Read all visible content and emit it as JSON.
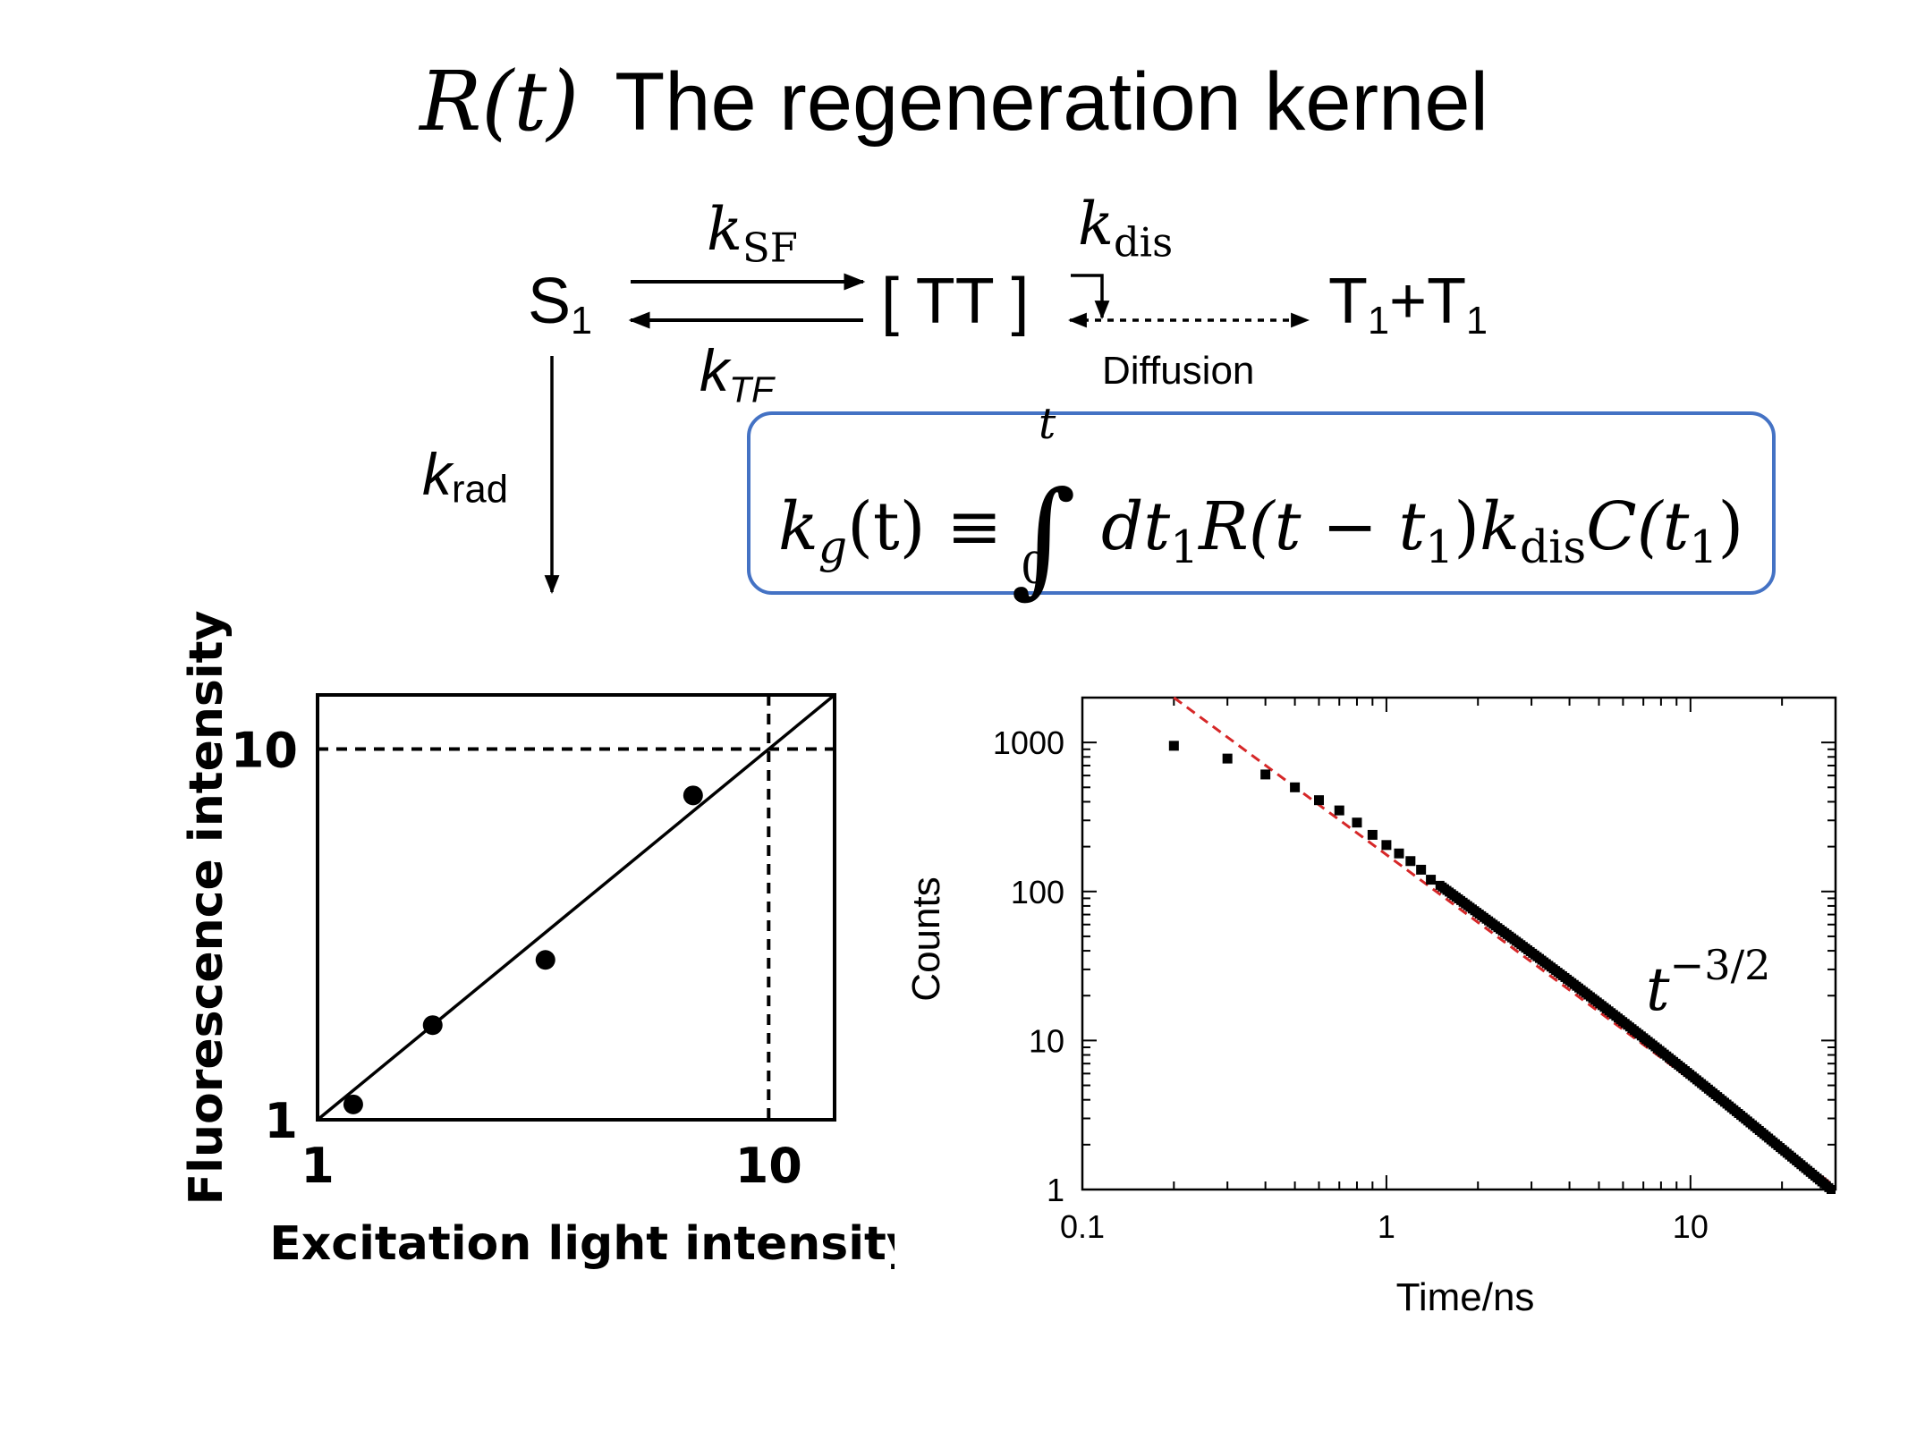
{
  "title": {
    "math": "R(t)",
    "text": "The regeneration kernel"
  },
  "scheme": {
    "s1": {
      "main": "S",
      "sub": "1"
    },
    "tt": "[ TT ]",
    "t1t1": {
      "a": "T",
      "a_sub": "1",
      "plus": "+",
      "b": "T",
      "b_sub": "1"
    },
    "k_sf": {
      "main": "k",
      "sub": "SF"
    },
    "k_tf": {
      "main": "k",
      "sub": "TF"
    },
    "k_dis": {
      "main": "k",
      "sub": "dis"
    },
    "k_rad": {
      "main": "k",
      "sub": "rad"
    },
    "diffusion": "Diffusion"
  },
  "equation": {
    "lhs": "k",
    "lhs_sub": "g",
    "lhs_arg": "(t) ≡",
    "int_symbol": "∫",
    "upper": "t",
    "lower": "0",
    "dt": "dt",
    "dt_sub": "1",
    "kernel": "R(t − t",
    "kernel_sub": "1",
    "kernel_close": ")",
    "k": "k",
    "k_sub": "dis",
    "c": "C(t",
    "c_sub": "1",
    "c_close": ")"
  },
  "power_law": {
    "base": "t",
    "exponent": "−3/2"
  },
  "colors": {
    "box_border": "#4472c4",
    "fit_line": "#d62728",
    "marker": "#000000"
  },
  "chart_data": [
    {
      "type": "scatter",
      "xlabel": "Excitation light intensity",
      "ylabel": "Fluorescence intensity",
      "xscale": "log",
      "yscale": "log",
      "xlim": [
        1,
        14
      ],
      "ylim": [
        1,
        14
      ],
      "xticks": [
        1,
        10
      ],
      "yticks": [
        1,
        10
      ],
      "x_tick_labels": [
        "1",
        "10"
      ],
      "y_tick_labels": [
        "1",
        "10"
      ],
      "points": {
        "x": [
          1.2,
          1.8,
          3.2,
          6.8
        ],
        "y": [
          1.1,
          1.8,
          2.7,
          7.5
        ]
      },
      "reference_line": {
        "x": [
          1,
          14
        ],
        "y": [
          1,
          14
        ]
      },
      "guide_lines": {
        "x": 10,
        "y": 10,
        "style": "dashed"
      }
    },
    {
      "type": "scatter",
      "xlabel": "Time/ns",
      "ylabel": "Counts",
      "xscale": "log",
      "yscale": "log",
      "xlim": [
        0.1,
        30
      ],
      "ylim": [
        1,
        2000
      ],
      "xticks": [
        0.1,
        1,
        10
      ],
      "yticks": [
        1,
        10,
        100,
        1000
      ],
      "x_tick_labels": [
        "0.1",
        "1",
        "10"
      ],
      "y_tick_labels": [
        "1",
        "10",
        "100",
        "1000"
      ],
      "points_sparse": {
        "x": [
          0.2,
          0.3,
          0.4,
          0.5,
          0.6,
          0.7,
          0.8,
          0.9,
          1.0,
          1.1,
          1.2,
          1.3,
          1.4
        ],
        "y": [
          950,
          780,
          610,
          500,
          410,
          350,
          290,
          240,
          205,
          180,
          160,
          140,
          120
        ]
      },
      "points_dense": {
        "x_start": 1.5,
        "x_end": 29,
        "y_start": 110,
        "y_end": 1
      },
      "fit": {
        "label": "t^-3/2",
        "x": [
          0.2,
          29
        ],
        "y": [
          2000,
          1.1
        ],
        "style": "dashed"
      }
    }
  ]
}
